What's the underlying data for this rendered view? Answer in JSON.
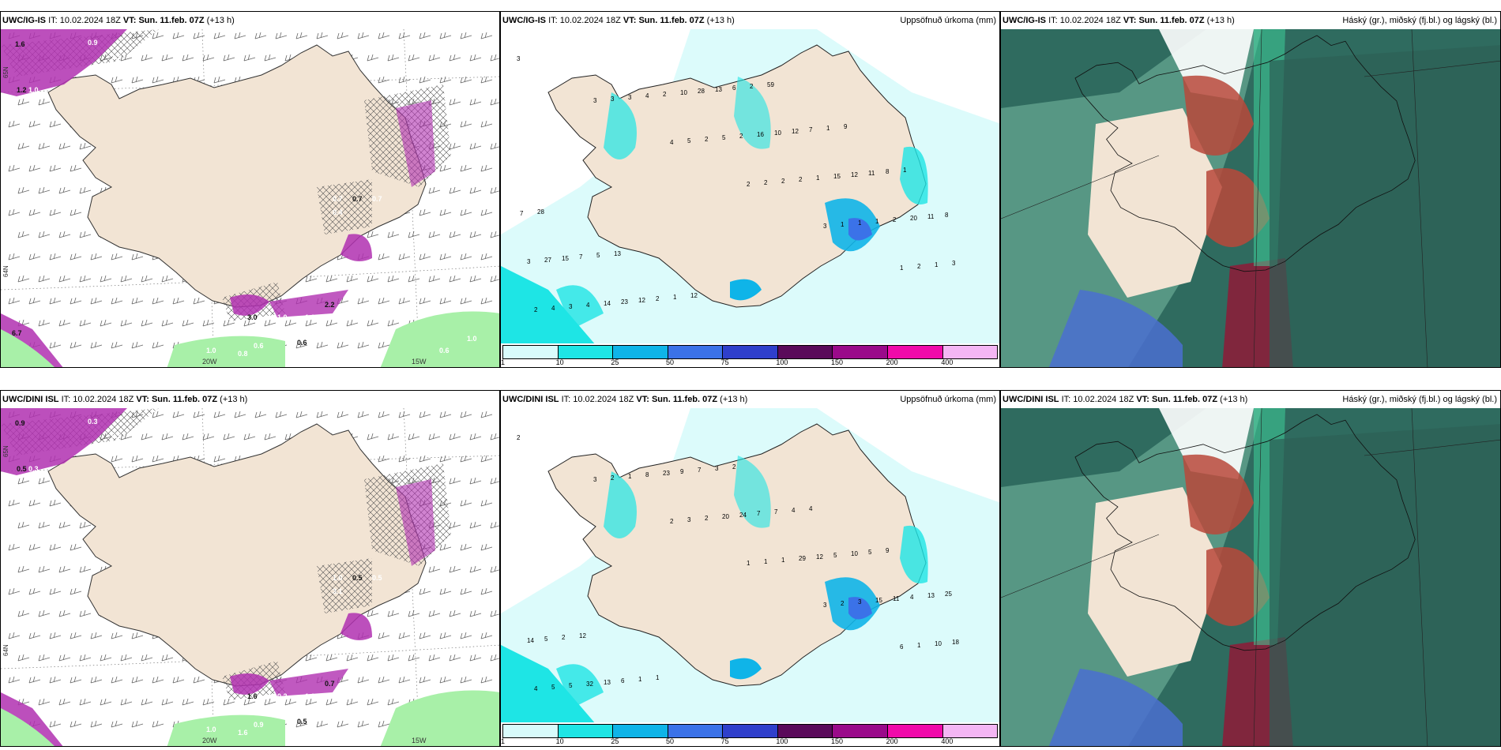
{
  "rows": [
    {
      "model": "UWC/IG-IS",
      "it_label": "IT:",
      "it_value": "10.02.2024 18Z",
      "vt_label": "VT:",
      "vt_value": "Sun. 11.feb. 07Z",
      "lead": "(+13 h)",
      "panels": [
        {
          "type": "wind",
          "right_title": "",
          "lon_labels": [
            "20W",
            "15W"
          ],
          "lat_labels": [
            "65N",
            "64N"
          ],
          "precip_values": [
            "1.6",
            "0.9",
            "1.5",
            "1.2",
            "1.0",
            "0.7",
            "0.7",
            "0.7",
            "0.4",
            "3.0",
            "1.0",
            "1.1",
            "2.2",
            "0.3",
            "0.6",
            "0.6",
            "1.0",
            "0.8",
            "6.7",
            "0.6",
            "1.0"
          ]
        },
        {
          "type": "precip",
          "right_title": "Uppsöfnuð úrkoma (mm)",
          "colorbar": [
            {
              "label": "1",
              "color": "#d8fbfb"
            },
            {
              "label": "10",
              "color": "#1ee5e5"
            },
            {
              "label": "25",
              "color": "#0fb4e8"
            },
            {
              "label": "50",
              "color": "#3b72e8"
            },
            {
              "label": "75",
              "color": "#2f3fcb"
            },
            {
              "label": "100",
              "color": "#5a0a5a"
            },
            {
              "label": "150",
              "color": "#9a0a8a"
            },
            {
              "label": "200",
              "color": "#f00aaa"
            },
            {
              "label": "400",
              "color": "#f4b6f4"
            }
          ],
          "values": [
            "3",
            "3",
            "4",
            "2",
            "3",
            "1",
            "2",
            "3",
            "5",
            "2",
            "1",
            "2",
            "4",
            "3",
            "2",
            "2",
            "1",
            "1",
            "3",
            "4",
            "5",
            "2",
            "1",
            "3",
            "4",
            "2",
            "2",
            "1",
            "2",
            "3",
            "14",
            "10",
            "16",
            "15",
            "20",
            "27",
            "23",
            "28",
            "10",
            "12",
            "11",
            "15",
            "12",
            "13",
            "12",
            "11",
            "8",
            "7",
            "2",
            "6",
            "7",
            "8",
            "7",
            "5",
            "1",
            "2",
            "1",
            "1",
            "28",
            "13",
            "12",
            "59",
            "9"
          ]
        },
        {
          "type": "cloud",
          "right_title": "Háský (gr.), miðský (fj.bl.) og lágský (bl.)"
        }
      ]
    },
    {
      "model": "UWC/DINI ISL",
      "it_label": "IT:",
      "it_value": "10.02.2024 18Z",
      "vt_label": "VT:",
      "vt_value": "Sun. 11.feb. 07Z",
      "lead": "(+13 h)",
      "panels": [
        {
          "type": "wind",
          "right_title": "",
          "lon_labels": [
            "20W",
            "15W"
          ],
          "lat_labels": [
            "65N",
            "64N"
          ],
          "precip_values": [
            "0.9",
            "0.3",
            "0.5",
            "0.5",
            "0.3",
            "1.0",
            "0.5",
            "0.5",
            "3.1",
            "1.6",
            "0.2",
            "1.1",
            "0.7",
            "0.5",
            "0.9",
            "0.5",
            "1.0",
            "1.6"
          ]
        },
        {
          "type": "precip",
          "right_title": "Uppsöfnuð úrkoma (mm)",
          "colorbar": [
            {
              "label": "1",
              "color": "#d8fbfb"
            },
            {
              "label": "10",
              "color": "#1ee5e5"
            },
            {
              "label": "25",
              "color": "#0fb4e8"
            },
            {
              "label": "50",
              "color": "#3b72e8"
            },
            {
              "label": "75",
              "color": "#2f3fcb"
            },
            {
              "label": "100",
              "color": "#5a0a5a"
            },
            {
              "label": "150",
              "color": "#9a0a8a"
            },
            {
              "label": "200",
              "color": "#f00aaa"
            },
            {
              "label": "400",
              "color": "#f4b6f4"
            }
          ],
          "values": [
            "2",
            "3",
            "2",
            "1",
            "3",
            "6",
            "4",
            "2",
            "3",
            "1",
            "2",
            "1",
            "5",
            "1",
            "2",
            "1",
            "3",
            "10",
            "5",
            "8",
            "20",
            "29",
            "15",
            "18",
            "32",
            "23",
            "24",
            "12",
            "11",
            "14",
            "13",
            "9",
            "7",
            "5",
            "4",
            "5",
            "6",
            "7",
            "7",
            "10",
            "13",
            "2",
            "1",
            "3",
            "4",
            "5",
            "25",
            "12",
            "1",
            "2",
            "4",
            "9"
          ]
        },
        {
          "type": "cloud",
          "right_title": "Háský (gr.), miðský (fj.bl.) og lágský (bl.)"
        }
      ]
    }
  ],
  "colors": {
    "land": "#f2e4d4",
    "sea": "#ffffff",
    "purple": "#b030b0",
    "green": "#a8f0a8"
  }
}
